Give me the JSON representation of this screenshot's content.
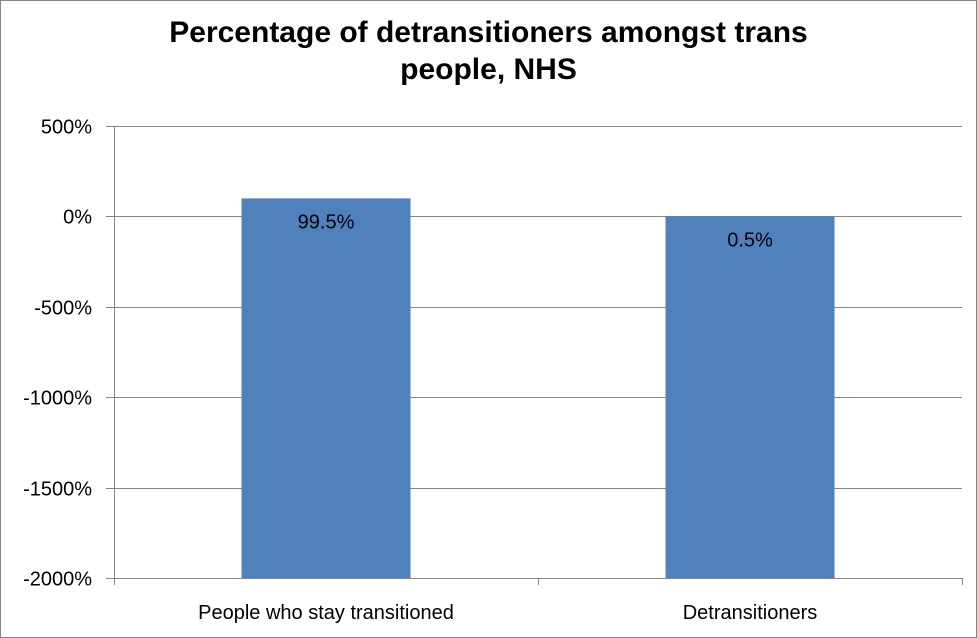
{
  "chart_data": {
    "type": "bar",
    "title": "Percentage of detransitioners amongst trans people, NHS",
    "title_lines": [
      "Percentage of detransitioners amongst trans",
      "people, NHS"
    ],
    "categories": [
      "People who stay transitioned",
      "Detransitioners"
    ],
    "values": [
      99.5,
      0.5
    ],
    "data_labels": [
      "99.5%",
      "0.5%"
    ],
    "xlabel": "",
    "ylabel": "",
    "ylim": [
      -2000,
      500
    ],
    "yticks": [
      500,
      0,
      -500,
      -1000,
      -1500,
      -2000
    ],
    "ytick_labels": [
      "500%",
      "0%",
      "-500%",
      "-1000%",
      "-1500%",
      "-2000%"
    ],
    "grid": true,
    "legend": "none",
    "bar_color": "#4f81bd"
  }
}
